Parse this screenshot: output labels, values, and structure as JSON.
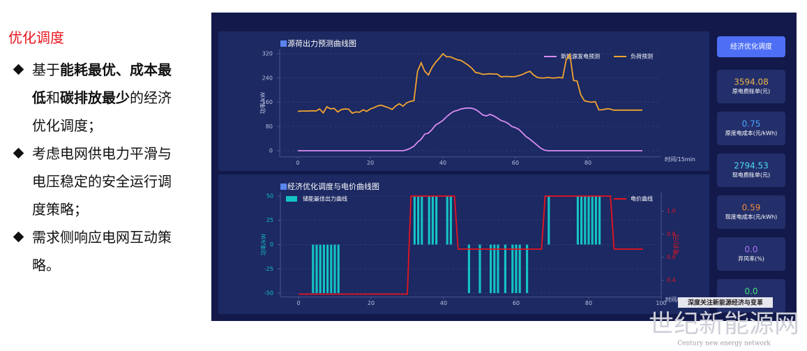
{
  "slide": {
    "title": "优化调度",
    "bullets": [
      [
        {
          "text": "基于"
        },
        {
          "text": "能耗最优、成本最低",
          "bold": true
        },
        {
          "text": "和"
        },
        {
          "text": "碳排放最少",
          "bold": true
        },
        {
          "text": "的经济优化调度；"
        }
      ],
      [
        {
          "text": "考虑电网供电力平滑与电压稳定的安全运行调度策略；"
        }
      ],
      [
        {
          "text": "需求侧响应电网互动策略。"
        }
      ]
    ]
  },
  "chart_data": [
    {
      "type": "line",
      "title": "源荷出力预测曲线图",
      "x_label": "时间/15min",
      "y_label": "功率/kW",
      "x": [
        0,
        1,
        2,
        3,
        4,
        5,
        6,
        7,
        8,
        9,
        10,
        11,
        12,
        13,
        14,
        15,
        16,
        17,
        18,
        19,
        20,
        21,
        22,
        23,
        24,
        25,
        26,
        27,
        28,
        29,
        30,
        31,
        32,
        33,
        34,
        35,
        36,
        37,
        38,
        39,
        40,
        41,
        42,
        43,
        44,
        45,
        46,
        47,
        48,
        49,
        50,
        51,
        52,
        53,
        54,
        55,
        56,
        57,
        58,
        59,
        60,
        61,
        62,
        63,
        64,
        65,
        66,
        67,
        68,
        69,
        70,
        71,
        72,
        73,
        74,
        75,
        76,
        77,
        78,
        79,
        80,
        81,
        82,
        83,
        84,
        85,
        86,
        87,
        88,
        89,
        90,
        91,
        92,
        93,
        94,
        95
      ],
      "series": [
        {
          "name": "新能源发电预测",
          "color": "#d88cf2",
          "values": [
            0,
            0,
            0,
            0,
            0,
            0,
            0,
            0,
            0,
            0,
            0,
            0,
            0,
            0,
            0,
            0,
            0,
            0,
            0,
            0,
            0,
            0,
            0,
            0,
            0,
            0,
            0,
            0,
            0,
            0,
            3,
            8,
            15,
            28,
            38,
            55,
            58,
            70,
            85,
            92,
            100,
            112,
            122,
            130,
            133,
            138,
            140,
            141,
            140,
            136,
            128,
            118,
            115,
            120,
            115,
            108,
            100,
            96,
            90,
            80,
            76,
            70,
            58,
            46,
            38,
            28,
            18,
            8,
            2,
            0,
            0,
            0,
            0,
            0,
            0,
            0,
            0,
            0,
            0,
            0,
            0,
            0,
            0,
            0,
            0,
            0,
            0,
            0,
            0,
            0,
            0,
            0,
            0,
            0,
            0,
            0
          ]
        },
        {
          "name": "负荷预测",
          "color": "#f2a431",
          "values": [
            130,
            131,
            131,
            131,
            132,
            131,
            138,
            125,
            145,
            138,
            140,
            128,
            136,
            138,
            137,
            124,
            128,
            127,
            135,
            130,
            138,
            142,
            148,
            150,
            146,
            142,
            136,
            148,
            155,
            147,
            158,
            163,
            165,
            262,
            290,
            262,
            250,
            275,
            292,
            305,
            320,
            310,
            310,
            305,
            300,
            298,
            290,
            282,
            272,
            258,
            256,
            252,
            253,
            254,
            253,
            253,
            244,
            245,
            245,
            244,
            245,
            248,
            252,
            258,
            262,
            250,
            242,
            240,
            240,
            242,
            240,
            240,
            242,
            240,
            300,
            318,
            232,
            230,
            185,
            165,
            162,
            160,
            162,
            135,
            135,
            138,
            138,
            134,
            134,
            134,
            134,
            134,
            134,
            134,
            134,
            134
          ]
        }
      ],
      "xlim": [
        -5,
        100
      ],
      "ylim": [
        -20,
        335
      ],
      "xticks": [
        0,
        20,
        40,
        60,
        80
      ],
      "yticks": [
        0,
        80,
        160,
        240,
        320
      ],
      "grid": true
    },
    {
      "type": "combo",
      "title": "经济优化调度与电价曲线图",
      "x_label": "时间/15min",
      "y_label": "功率/kW",
      "y2_label": "电价/元",
      "x": [
        0,
        1,
        2,
        3,
        4,
        5,
        6,
        7,
        8,
        9,
        10,
        11,
        12,
        13,
        14,
        15,
        16,
        17,
        18,
        19,
        20,
        21,
        22,
        23,
        24,
        25,
        26,
        27,
        28,
        29,
        30,
        31,
        32,
        33,
        34,
        35,
        36,
        37,
        38,
        39,
        40,
        41,
        42,
        43,
        44,
        45,
        46,
        47,
        48,
        49,
        50,
        51,
        52,
        53,
        54,
        55,
        56,
        57,
        58,
        59,
        60,
        61,
        62,
        63,
        64,
        65,
        66,
        67,
        68,
        69,
        70,
        71,
        72,
        73,
        74,
        75,
        76,
        77,
        78,
        79,
        80,
        81,
        82,
        83,
        84,
        85,
        86,
        87,
        88,
        89,
        90,
        91,
        92,
        93,
        94,
        95
      ],
      "series": [
        {
          "name": "储能最佳出力曲线",
          "type": "bar",
          "color": "#14c4c4",
          "values": [
            0,
            0,
            0,
            0,
            -50,
            -50,
            -50,
            -50,
            -50,
            -50,
            -50,
            -50,
            0,
            0,
            0,
            0,
            0,
            0,
            0,
            0,
            0,
            0,
            0,
            0,
            0,
            0,
            0,
            0,
            0,
            0,
            0,
            0,
            50,
            50,
            50,
            0,
            50,
            50,
            50,
            0,
            0,
            50,
            50,
            0,
            0,
            0,
            0,
            -50,
            0,
            0,
            -50,
            0,
            0,
            -50,
            -50,
            -50,
            0,
            -50,
            0,
            -50,
            -50,
            -50,
            0,
            -50,
            0,
            0,
            0,
            0,
            0,
            50,
            0,
            0,
            0,
            0,
            0,
            0,
            0,
            50,
            50,
            50,
            50,
            50,
            50,
            50,
            0,
            0,
            0,
            0,
            0,
            0,
            0,
            0,
            0,
            0,
            0,
            0
          ]
        },
        {
          "name": "电价曲线",
          "type": "line",
          "axis": "y2",
          "color": "#e8141e",
          "values": [
            0.28,
            0.28,
            0.28,
            0.28,
            0.28,
            0.28,
            0.28,
            0.28,
            0.28,
            0.28,
            0.28,
            0.28,
            0.28,
            0.28,
            0.28,
            0.28,
            0.28,
            0.28,
            0.28,
            0.28,
            0.28,
            0.28,
            0.28,
            0.28,
            0.28,
            0.28,
            0.28,
            0.28,
            0.28,
            0.28,
            0.28,
            1.13,
            1.13,
            1.13,
            1.13,
            1.13,
            1.13,
            1.13,
            1.13,
            1.13,
            1.13,
            1.13,
            1.13,
            1.13,
            0.67,
            0.67,
            0.67,
            0.67,
            0.67,
            0.67,
            0.67,
            0.67,
            0.67,
            0.67,
            0.67,
            0.67,
            0.67,
            0.67,
            0.67,
            0.67,
            0.67,
            0.67,
            0.67,
            0.67,
            0.67,
            0.67,
            0.67,
            0.67,
            1.13,
            1.13,
            1.13,
            1.13,
            1.13,
            1.13,
            1.13,
            1.13,
            1.13,
            1.13,
            1.13,
            1.13,
            1.13,
            1.13,
            1.13,
            1.13,
            1.13,
            1.13,
            1.13,
            0.67,
            0.67,
            0.67,
            0.67,
            0.67,
            0.67,
            0.67,
            0.67,
            0.67
          ]
        }
      ],
      "xlim": [
        -5,
        100
      ],
      "ylim": [
        -54,
        54
      ],
      "y2lim": [
        0.255,
        1.164
      ],
      "xticks": [
        0,
        20,
        40,
        60,
        80,
        100
      ],
      "yticks": [
        -50,
        -25,
        0,
        25,
        50
      ],
      "y2ticks": [
        0.4,
        0.6,
        0.8,
        {
          "value": 1,
          "label": "1.0"
        }
      ],
      "grid": true
    }
  ],
  "side_panel": {
    "button": "经济优化调度",
    "cards": [
      {
        "value": "3594.08",
        "label": "原电费账单(元)",
        "color": "#e9b24c"
      },
      {
        "value": "0.75",
        "label": "原度电成本(元/kWh)",
        "color": "#4aa6ff"
      },
      {
        "value": "2794.53",
        "label": "现电费账单(元)",
        "color": "#4cd8f2"
      },
      {
        "value": "0.59",
        "label": "现度电成本(元/kWh)",
        "color": "#f08a3a"
      },
      {
        "value": "0.0",
        "label": "弃风率(%)",
        "color": "#a474f2"
      },
      {
        "value": "0.0",
        "color": "#44e07a"
      }
    ]
  },
  "watermark": {
    "tag": "深度关注新能源经济与变革",
    "site": "世纪新能源网",
    "site_en": "Century new energy network"
  }
}
